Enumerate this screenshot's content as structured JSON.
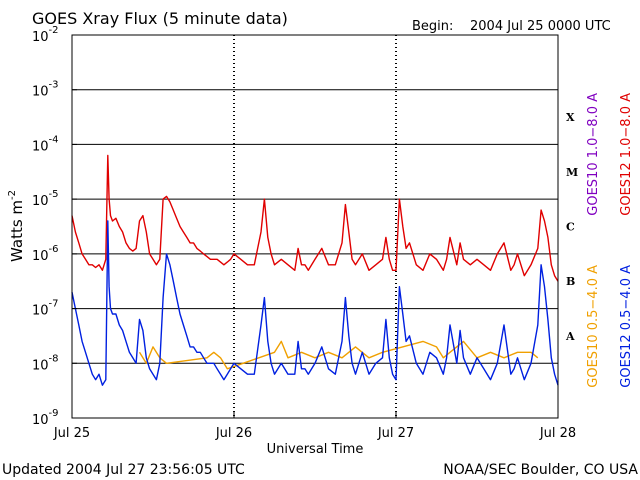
{
  "chart_data": {
    "type": "line",
    "title": "GOES Xray Flux (5 minute data)",
    "begin_label": "Begin:",
    "begin_value": "2004 Jul 25 0000 UTC",
    "xlabel": "Universal Time",
    "ylabel": "Watts m",
    "ylabel_sup": "-2",
    "xlim": [
      0,
      72
    ],
    "x_units": "hours since 2004 Jul 25 0000 UTC",
    "x_ticks": [
      {
        "x": 0,
        "label": "Jul 25"
      },
      {
        "x": 24,
        "label": "Jul 26"
      },
      {
        "x": 48,
        "label": "Jul 27"
      },
      {
        "x": 72,
        "label": "Jul 28"
      }
    ],
    "ylim_exponent": [
      -9,
      -2
    ],
    "y_scale": "log",
    "y_ticks": [
      {
        "exp": -2,
        "label": "10",
        "sup": "-2"
      },
      {
        "exp": -3,
        "label": "10",
        "sup": "-3"
      },
      {
        "exp": -4,
        "label": "10",
        "sup": "-4"
      },
      {
        "exp": -5,
        "label": "10",
        "sup": "-5"
      },
      {
        "exp": -6,
        "label": "10",
        "sup": "-6"
      },
      {
        "exp": -7,
        "label": "10",
        "sup": "-7"
      },
      {
        "exp": -8,
        "label": "10",
        "sup": "-8"
      },
      {
        "exp": -9,
        "label": "10",
        "sup": "-9"
      }
    ],
    "flare_classes": [
      {
        "label": "X",
        "exp": -3.5
      },
      {
        "label": "M",
        "exp": -4.5
      },
      {
        "label": "C",
        "exp": -5.5
      },
      {
        "label": "B",
        "exp": -6.5
      },
      {
        "label": "A",
        "exp": -7.5
      }
    ],
    "grid_y_exponents": [
      -3,
      -4,
      -5,
      -6,
      -7,
      -8
    ],
    "day_separators_x": [
      24,
      48
    ],
    "series": [
      {
        "name": "GOES10 1.0-8.0 A",
        "legend": "GOES10 1.0−8.0 A",
        "color": "#8000c0",
        "visible_line": false,
        "x": [],
        "log10_values": []
      },
      {
        "name": "GOES12 1.0-8.0 A",
        "legend": "GOES12 1.0−8.0 A",
        "color": "#e00000",
        "visible_line": true,
        "x": [
          0,
          0.5,
          1,
          1.5,
          2,
          2.5,
          3,
          3.5,
          4,
          4.5,
          5,
          5.3,
          5.5,
          5.7,
          6,
          6.5,
          7,
          7.5,
          8,
          8.5,
          9,
          9.5,
          10,
          10.5,
          11,
          11.5,
          12,
          12.5,
          13,
          13.5,
          14,
          14.5,
          15,
          15.5,
          16,
          16.5,
          17,
          17.5,
          18,
          18.5,
          19,
          19.5,
          20,
          20.5,
          21,
          21.5,
          22,
          22.5,
          23,
          23.5,
          24,
          25,
          26,
          27,
          28,
          28.5,
          29,
          29.5,
          30,
          31,
          32,
          33,
          33.5,
          34,
          34.5,
          35,
          36,
          37,
          38,
          39,
          40,
          40.5,
          41,
          41.5,
          42,
          43,
          44,
          45,
          46,
          46.5,
          47,
          47.5,
          48,
          48.5,
          49,
          49.5,
          50,
          51,
          52,
          53,
          54,
          55,
          55.5,
          56,
          57,
          57.5,
          58,
          59,
          60,
          61,
          62,
          63,
          64,
          65,
          65.5,
          66,
          67,
          68,
          69,
          69.5,
          70,
          70.5,
          71,
          71.5,
          72
        ],
        "log10_values": [
          -5.3,
          -5.6,
          -5.8,
          -6.0,
          -6.1,
          -6.2,
          -6.2,
          -6.25,
          -6.2,
          -6.3,
          -6.1,
          -4.2,
          -5.0,
          -5.3,
          -5.4,
          -5.35,
          -5.5,
          -5.6,
          -5.8,
          -5.9,
          -5.95,
          -5.9,
          -5.4,
          -5.3,
          -5.6,
          -6.0,
          -6.1,
          -6.2,
          -6.1,
          -5.0,
          -4.95,
          -5.05,
          -5.2,
          -5.35,
          -5.5,
          -5.6,
          -5.7,
          -5.8,
          -5.8,
          -5.9,
          -5.95,
          -6.0,
          -6.05,
          -6.1,
          -6.1,
          -6.1,
          -6.15,
          -6.2,
          -6.15,
          -6.1,
          -6.0,
          -6.1,
          -6.2,
          -6.2,
          -5.6,
          -5.0,
          -5.7,
          -6.0,
          -6.2,
          -6.1,
          -6.2,
          -6.3,
          -5.9,
          -6.2,
          -6.2,
          -6.3,
          -6.1,
          -5.9,
          -6.2,
          -6.2,
          -5.8,
          -5.1,
          -5.6,
          -6.1,
          -6.2,
          -6.0,
          -6.3,
          -6.2,
          -6.1,
          -5.7,
          -6.1,
          -6.3,
          -6.3,
          -5.0,
          -5.5,
          -5.9,
          -5.8,
          -6.2,
          -6.3,
          -6.0,
          -6.1,
          -6.3,
          -6.1,
          -5.7,
          -6.2,
          -5.8,
          -6.1,
          -6.2,
          -6.1,
          -6.2,
          -6.3,
          -6.0,
          -5.8,
          -6.3,
          -6.2,
          -6.0,
          -6.4,
          -6.2,
          -5.9,
          -5.2,
          -5.4,
          -5.7,
          -6.2,
          -6.4,
          -6.5
        ]
      },
      {
        "name": "GOES10 0.5-4.0 A",
        "legend": "GOES10 0.5−4.0 A",
        "color": "#f0a000",
        "visible_line": true,
        "x": [
          10,
          11,
          12,
          13,
          14,
          20,
          21,
          22,
          23,
          30,
          31,
          32,
          34,
          36,
          38,
          40,
          42,
          44,
          46,
          52,
          54,
          55,
          56,
          58,
          60,
          62,
          64,
          66,
          68,
          69
        ],
        "log10_values": [
          -7.8,
          -8.0,
          -7.7,
          -7.9,
          -8.0,
          -7.9,
          -7.8,
          -7.9,
          -8.1,
          -7.8,
          -7.6,
          -7.9,
          -7.8,
          -7.9,
          -7.8,
          -7.9,
          -7.7,
          -7.9,
          -7.8,
          -7.6,
          -7.7,
          -7.9,
          -7.8,
          -7.6,
          -7.9,
          -7.8,
          -7.9,
          -7.8,
          -7.8,
          -7.9
        ]
      },
      {
        "name": "GOES12 0.5-4.0 A",
        "legend": "GOES12 0.5−4.0 A",
        "color": "#0020e0",
        "visible_line": true,
        "x": [
          0,
          0.5,
          1,
          1.5,
          2,
          2.5,
          3,
          3.5,
          4,
          4.5,
          5,
          5.3,
          5.5,
          5.7,
          6,
          6.5,
          7,
          7.5,
          8,
          8.5,
          9,
          9.5,
          10,
          10.5,
          11,
          11.5,
          12,
          12.5,
          13,
          13.5,
          14,
          14.5,
          15,
          15.5,
          16,
          16.5,
          17,
          17.5,
          18,
          18.5,
          19,
          19.5,
          20,
          20.5,
          21,
          21.5,
          22,
          22.5,
          23,
          23.5,
          24,
          25,
          26,
          27,
          28,
          28.5,
          29,
          29.5,
          30,
          31,
          32,
          33,
          33.5,
          34,
          34.5,
          35,
          36,
          37,
          38,
          39,
          40,
          40.5,
          41,
          41.5,
          42,
          43,
          44,
          45,
          46,
          46.5,
          47,
          47.5,
          48,
          48.5,
          49,
          49.5,
          50,
          51,
          52,
          53,
          54,
          55,
          55.5,
          56,
          57,
          57.5,
          58,
          59,
          60,
          61,
          62,
          63,
          64,
          65,
          65.5,
          66,
          67,
          68,
          69,
          69.5,
          70,
          70.5,
          71,
          71.5,
          72
        ],
        "log10_values": [
          -6.7,
          -7.0,
          -7.3,
          -7.6,
          -7.8,
          -8.0,
          -8.2,
          -8.3,
          -8.2,
          -8.4,
          -8.3,
          -5.4,
          -6.6,
          -7.0,
          -7.1,
          -7.1,
          -7.3,
          -7.4,
          -7.6,
          -7.8,
          -7.9,
          -8.0,
          -7.2,
          -7.4,
          -7.9,
          -8.1,
          -8.2,
          -8.3,
          -8.0,
          -6.8,
          -6.0,
          -6.2,
          -6.5,
          -6.8,
          -7.1,
          -7.3,
          -7.5,
          -7.7,
          -7.7,
          -7.8,
          -7.8,
          -7.9,
          -8.0,
          -8.0,
          -8.0,
          -8.1,
          -8.2,
          -8.3,
          -8.2,
          -8.1,
          -8.0,
          -8.1,
          -8.2,
          -8.2,
          -7.3,
          -6.8,
          -7.6,
          -8.0,
          -8.2,
          -8.0,
          -8.2,
          -8.2,
          -7.6,
          -8.1,
          -8.1,
          -8.2,
          -8.0,
          -7.7,
          -8.1,
          -8.2,
          -7.6,
          -6.8,
          -7.5,
          -8.0,
          -8.2,
          -7.8,
          -8.2,
          -8.0,
          -7.9,
          -7.2,
          -7.9,
          -8.2,
          -8.3,
          -6.6,
          -7.1,
          -7.6,
          -7.5,
          -8.0,
          -8.2,
          -7.8,
          -7.9,
          -8.2,
          -7.9,
          -7.3,
          -8.0,
          -7.4,
          -7.9,
          -8.2,
          -7.9,
          -8.1,
          -8.3,
          -8.0,
          -7.3,
          -8.2,
          -8.1,
          -7.9,
          -8.3,
          -8.0,
          -7.3,
          -6.2,
          -6.6,
          -7.2,
          -7.9,
          -8.2,
          -8.4
        ]
      }
    ],
    "footer_left": "Updated 2004 Jul 27 23:56:05 UTC",
    "footer_right": "NOAA/SEC Boulder, CO USA"
  }
}
